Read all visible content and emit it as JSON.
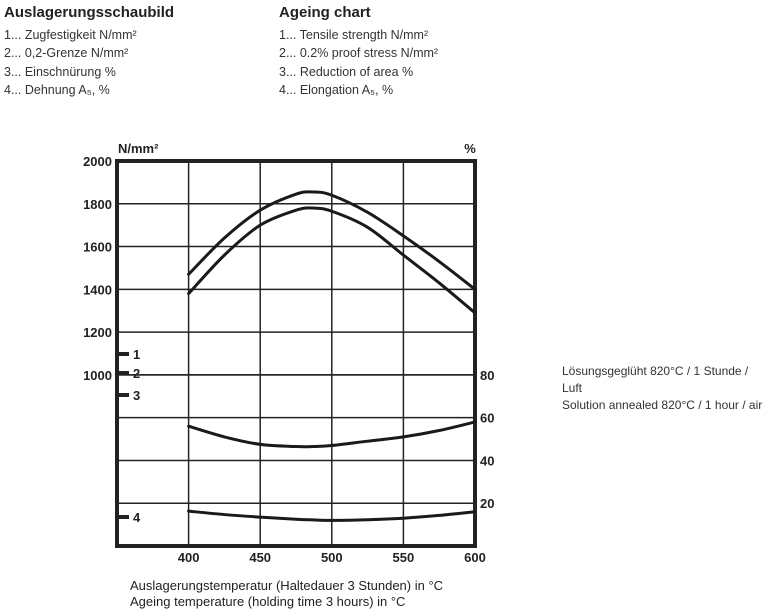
{
  "legend_de": {
    "title": "Auslagerungsschaubild",
    "items": [
      "1... Zugfestigkeit N/mm²",
      "2... 0,2-Grenze N/mm²",
      "3... Einschnürung %",
      "4... Dehnung A₅, %"
    ]
  },
  "legend_en": {
    "title": "Ageing  chart",
    "items": [
      "1... Tensile strength N/mm²",
      "2...  0.2% proof stress N/mm²",
      "3...  Reduction of area %",
      "4... Elongation A₅,  %"
    ]
  },
  "note": {
    "de": "Lösungsgeglüht 820°C / 1 Stunde / Luft",
    "en": "Solution annealed 820°C / 1 hour / air"
  },
  "chart_data": {
    "type": "line",
    "xlabel": [
      "Auslagerungstemperatur (Haltedauer 3 Stunden) in °C",
      "Ageing temperature (holding time 3 hours) in °C"
    ],
    "ylabel_left": "N/mm²",
    "ylabel_right": "%",
    "xlim": [
      350,
      600
    ],
    "xticks": [
      400,
      450,
      500,
      550,
      600
    ],
    "ylim_left": [
      200,
      2000
    ],
    "yticks_left": [
      1000,
      1200,
      1400,
      1600,
      1800,
      2000
    ],
    "ylim_right": [
      0,
      180
    ],
    "yticks_right": [
      20,
      40,
      60,
      80
    ],
    "grid": true,
    "curve_markers": [
      "1",
      "2",
      "3",
      "4"
    ],
    "x": [
      400,
      425,
      450,
      475,
      487,
      500,
      525,
      550,
      575,
      600
    ],
    "series": [
      {
        "name": "1",
        "axis": "left",
        "values": [
          1470,
          1640,
          1770,
          1845,
          1855,
          1840,
          1760,
          1650,
          1530,
          1400
        ]
      },
      {
        "name": "2",
        "axis": "left",
        "values": [
          1380,
          1560,
          1700,
          1770,
          1780,
          1765,
          1690,
          1560,
          1430,
          1290
        ]
      },
      {
        "name": "3",
        "axis": "right",
        "values": [
          56,
          51,
          47.5,
          46.5,
          46.5,
          47,
          49,
          51,
          54,
          58
        ]
      },
      {
        "name": "4",
        "axis": "right",
        "values": [
          16.3,
          14.7,
          13.5,
          12.5,
          12.2,
          12,
          12.3,
          13,
          14.3,
          16
        ]
      }
    ]
  }
}
